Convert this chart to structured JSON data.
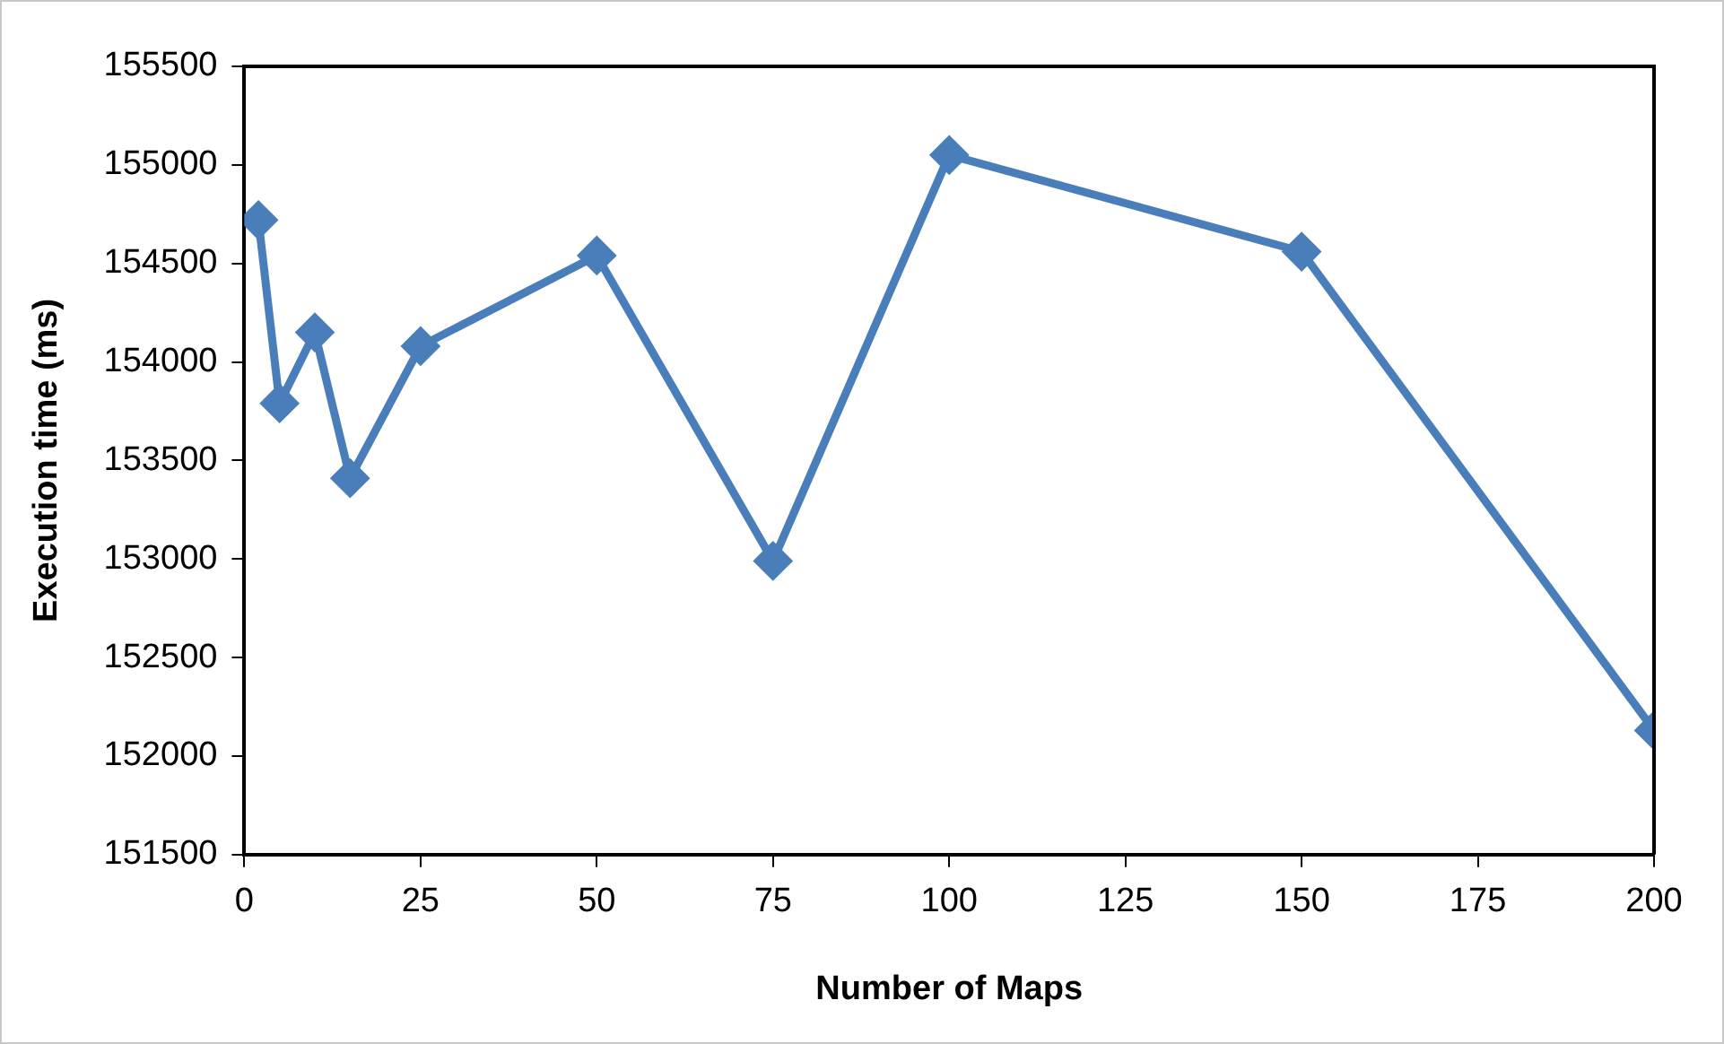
{
  "chart_data": {
    "type": "line",
    "xlabel": "Number of Maps",
    "ylabel": "Execution time (ms)",
    "x": [
      2,
      5,
      10,
      15,
      25,
      50,
      75,
      100,
      150,
      200
    ],
    "series": [
      {
        "color": "#4a7ebb",
        "values": [
          154720,
          153790,
          154150,
          153410,
          154080,
          154540,
          152990,
          155050,
          154560,
          152130
        ]
      }
    ],
    "xlim": [
      0,
      200
    ],
    "xticks": [
      0,
      25,
      50,
      75,
      100,
      125,
      150,
      175,
      200
    ],
    "ylim": [
      151500,
      155500
    ],
    "yticks": [
      151500,
      152000,
      152500,
      153000,
      153500,
      154000,
      154500,
      155000,
      155500
    ],
    "grid": false,
    "legend": false,
    "marker": "diamond",
    "line_style": "solid"
  }
}
